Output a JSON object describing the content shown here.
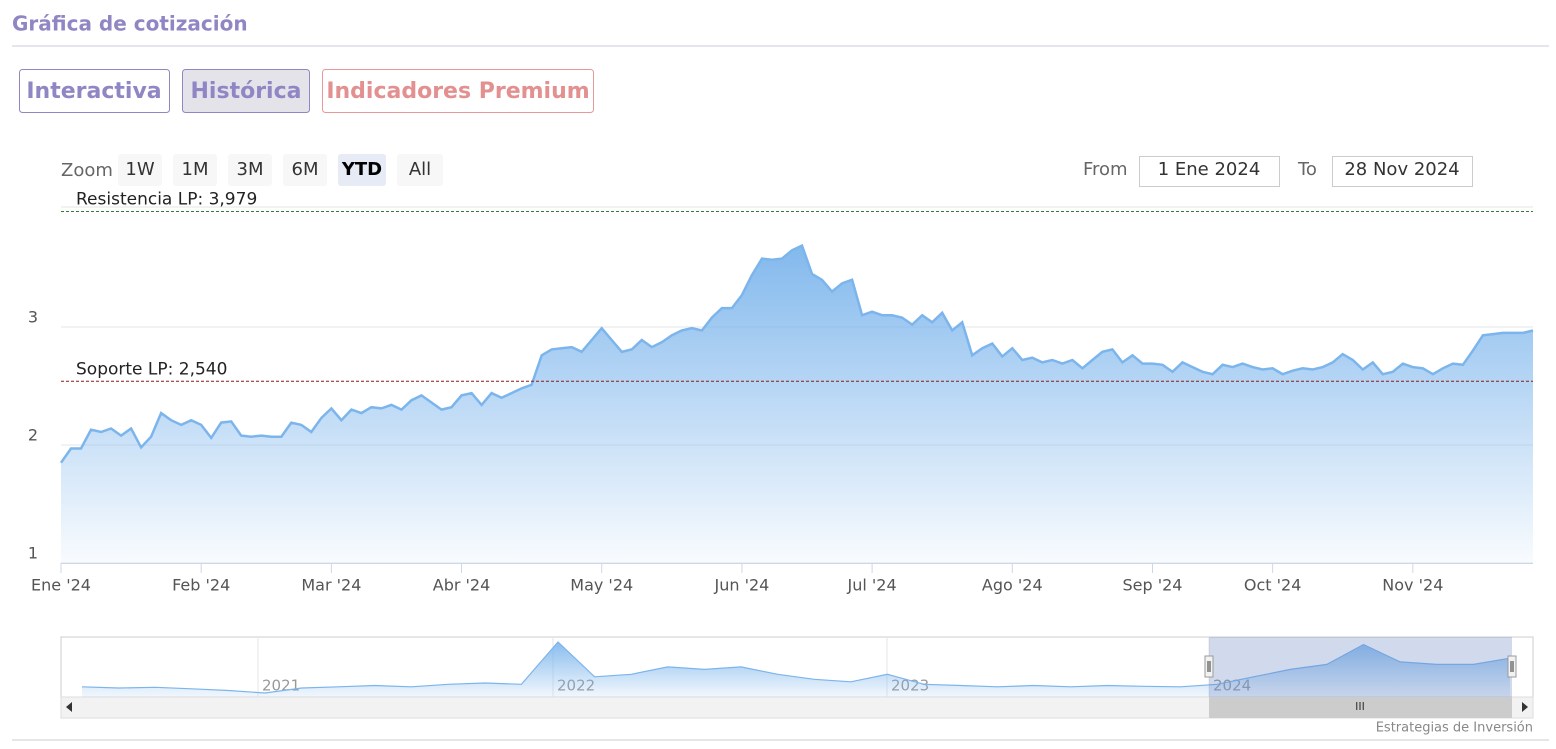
{
  "header": {
    "title": "Gráfica de cotización"
  },
  "tabs": [
    "Interactiva",
    "Histórica",
    "Indicadores Premium"
  ],
  "range_selector": {
    "zoom_label": "Zoom",
    "buttons": [
      "1W",
      "1M",
      "3M",
      "6M",
      "YTD",
      "All"
    ],
    "selected": "YTD",
    "from_label": "From",
    "from": "1 Ene 2024",
    "to_label": "To",
    "to": "28 Nov 2024"
  },
  "chart_data": {
    "type": "area",
    "color": "#7cb5ec",
    "categories": [
      "Ene '24",
      null,
      null,
      null,
      null,
      null,
      null,
      null,
      null,
      null,
      null,
      null,
      null,
      null,
      "Feb '24",
      null,
      null,
      null,
      null,
      null,
      null,
      null,
      null,
      null,
      null,
      null,
      null,
      "Mar '24",
      null,
      null,
      null,
      null,
      null,
      null,
      null,
      null,
      null,
      null,
      null,
      null,
      "Abr '24",
      null,
      null,
      null,
      null,
      null,
      null,
      null,
      null,
      null,
      null,
      null,
      null,
      null,
      "May '24",
      null,
      null,
      null,
      null,
      null,
      null,
      null,
      null,
      null,
      null,
      null,
      null,
      null,
      "Jun '24",
      null,
      null,
      null,
      null,
      null,
      null,
      null,
      null,
      null,
      null,
      null,
      null,
      "Jul '24",
      null,
      null,
      null,
      null,
      null,
      null,
      null,
      null,
      null,
      null,
      null,
      null,
      null,
      "Ago '24",
      null,
      null,
      null,
      null,
      null,
      null,
      null,
      null,
      null,
      null,
      null,
      null,
      null,
      "Sep '24",
      null,
      null,
      null,
      null,
      null,
      null,
      null,
      null,
      null,
      null,
      null,
      "Oct '24",
      null,
      null,
      null,
      null,
      null,
      null,
      null,
      null,
      null,
      null,
      null,
      null,
      null,
      "Nov '24",
      null,
      null,
      null,
      null,
      null,
      null,
      null,
      null,
      null,
      null,
      null,
      null
    ],
    "values": [
      1.85,
      1.97,
      1.97,
      2.13,
      2.11,
      2.14,
      2.08,
      2.14,
      1.98,
      2.07,
      2.27,
      2.21,
      2.17,
      2.21,
      2.17,
      2.06,
      2.19,
      2.2,
      2.08,
      2.07,
      2.08,
      2.07,
      2.07,
      2.19,
      2.17,
      2.11,
      2.23,
      2.31,
      2.21,
      2.3,
      2.27,
      2.32,
      2.31,
      2.34,
      2.3,
      2.38,
      2.42,
      2.36,
      2.3,
      2.32,
      2.42,
      2.44,
      2.34,
      2.44,
      2.4,
      2.44,
      2.48,
      2.51,
      2.76,
      2.81,
      2.82,
      2.83,
      2.79,
      2.89,
      2.99,
      2.89,
      2.79,
      2.81,
      2.89,
      2.83,
      2.87,
      2.93,
      2.97,
      2.99,
      2.97,
      3.08,
      3.16,
      3.16,
      3.27,
      3.44,
      3.58,
      3.57,
      3.58,
      3.65,
      3.69,
      3.45,
      3.4,
      3.3,
      3.37,
      3.4,
      3.1,
      3.13,
      3.1,
      3.1,
      3.08,
      3.02,
      3.1,
      3.04,
      3.12,
      2.97,
      3.04,
      2.76,
      2.82,
      2.86,
      2.75,
      2.82,
      2.72,
      2.74,
      2.7,
      2.72,
      2.69,
      2.72,
      2.65,
      2.72,
      2.79,
      2.81,
      2.7,
      2.76,
      2.69,
      2.69,
      2.68,
      2.62,
      2.7,
      2.66,
      2.62,
      2.6,
      2.68,
      2.66,
      2.69,
      2.66,
      2.64,
      2.65,
      2.6,
      2.63,
      2.65,
      2.64,
      2.66,
      2.7,
      2.77,
      2.72,
      2.64,
      2.7,
      2.6,
      2.62,
      2.69,
      2.66,
      2.65,
      2.6,
      2.65,
      2.69,
      2.68,
      2.8,
      2.93,
      2.94,
      2.95,
      2.95,
      2.95,
      2.97
    ],
    "ylim": [
      1,
      4
    ],
    "yticks": [
      1,
      2,
      3
    ],
    "grid": true,
    "annotations": [
      {
        "value": 3.979,
        "label": "Resistencia LP: 3,979",
        "color": "#2e7d32"
      },
      {
        "value": 2.54,
        "label": "Soporte LP: 2,540",
        "color": "#8b1a1a"
      }
    ],
    "navigator": {
      "labels": [
        "2021",
        "2022",
        "2023",
        "2024"
      ],
      "values": [
        1.8,
        1.75,
        1.78,
        1.72,
        1.65,
        1.55,
        1.75,
        1.8,
        1.85,
        1.8,
        1.9,
        1.95,
        1.9,
        3.6,
        2.2,
        2.3,
        2.6,
        2.5,
        2.6,
        2.3,
        2.1,
        2.0,
        2.3,
        1.9,
        1.85,
        1.8,
        1.85,
        1.8,
        1.85,
        1.82,
        1.8,
        1.9,
        2.2,
        2.5,
        2.7,
        3.5,
        2.8,
        2.7,
        2.7,
        2.95
      ]
    }
  },
  "credits": "Estrategias de Inversión"
}
